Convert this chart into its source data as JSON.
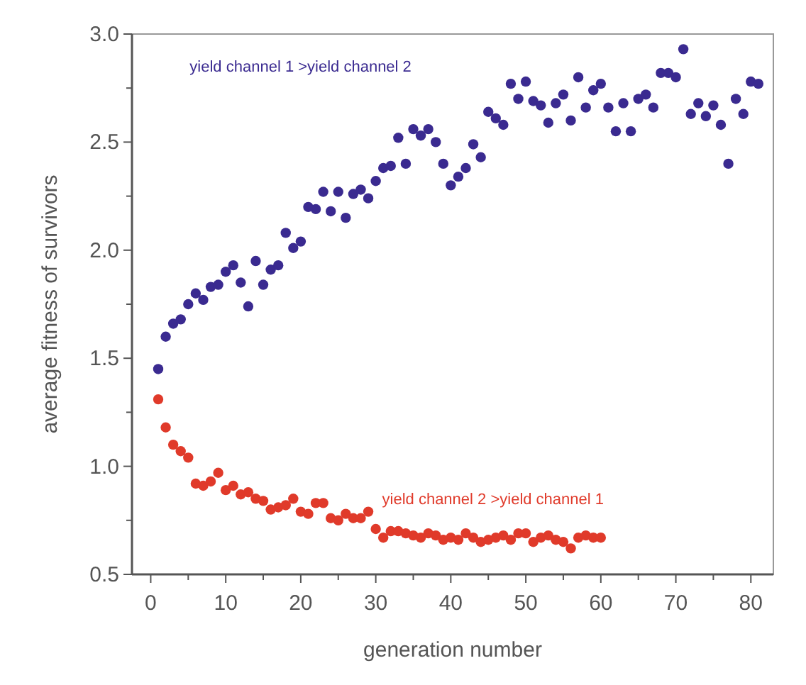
{
  "chart_data": {
    "type": "scatter",
    "xlabel": "generation number",
    "ylabel": "average fitness of survivors",
    "xlim": [
      -2.5,
      83
    ],
    "ylim": [
      0.5,
      3.0
    ],
    "xticks": [
      0,
      {
        "value": 5,
        "label": null
      },
      10,
      {
        "value": 15,
        "label": null
      },
      20,
      {
        "value": 25,
        "label": null
      },
      30,
      {
        "value": 35,
        "label": null
      },
      40,
      {
        "value": 45,
        "label": null
      },
      50,
      {
        "value": 55,
        "label": null
      },
      60,
      {
        "value": 65,
        "label": null
      },
      70,
      {
        "value": 75,
        "label": null
      },
      80
    ],
    "yticks": [
      {
        "value": 0.5,
        "label": "0.5"
      },
      {
        "value": 0.75,
        "label": null
      },
      {
        "value": 1.0,
        "label": "1.0"
      },
      {
        "value": 1.25,
        "label": null
      },
      {
        "value": 1.5,
        "label": "1.5"
      },
      {
        "value": 1.75,
        "label": null
      },
      {
        "value": 2.0,
        "label": "2.0"
      },
      {
        "value": 2.25,
        "label": null
      },
      {
        "value": 2.5,
        "label": "2.5"
      },
      {
        "value": 2.75,
        "label": null
      },
      {
        "value": 3.0,
        "label": "3.0"
      }
    ],
    "grid": false,
    "marker": "circle",
    "series": [
      {
        "name": "yield channel 1 >yield channel 2",
        "color": "#3a2a90",
        "x": [
          1,
          2,
          3,
          4,
          5,
          6,
          7,
          8,
          9,
          10,
          11,
          12,
          13,
          14,
          15,
          16,
          17,
          18,
          19,
          20,
          21,
          22,
          23,
          24,
          25,
          26,
          27,
          28,
          29,
          30,
          31,
          32,
          33,
          34,
          35,
          36,
          37,
          38,
          39,
          40,
          41,
          42,
          43,
          44,
          45,
          46,
          47,
          48,
          49,
          50,
          51,
          52,
          53,
          54,
          55,
          56,
          57,
          58,
          59,
          60,
          61,
          62,
          63,
          64,
          65,
          66,
          67,
          68,
          69,
          70,
          71,
          72,
          73,
          74,
          75,
          76,
          77,
          78,
          79,
          80,
          81
        ],
        "values": [
          1.45,
          1.6,
          1.66,
          1.68,
          1.75,
          1.8,
          1.77,
          1.83,
          1.84,
          1.9,
          1.93,
          1.85,
          1.74,
          1.95,
          1.84,
          1.91,
          1.93,
          2.08,
          2.01,
          2.04,
          2.2,
          2.19,
          2.27,
          2.18,
          2.27,
          2.15,
          2.26,
          2.28,
          2.24,
          2.32,
          2.38,
          2.39,
          2.52,
          2.4,
          2.56,
          2.53,
          2.56,
          2.5,
          2.4,
          2.3,
          2.34,
          2.38,
          2.49,
          2.43,
          2.64,
          2.61,
          2.58,
          2.77,
          2.7,
          2.78,
          2.69,
          2.67,
          2.59,
          2.68,
          2.72,
          2.6,
          2.8,
          2.66,
          2.74,
          2.77,
          2.66,
          2.55,
          2.68,
          2.55,
          2.7,
          2.72,
          2.66,
          2.82,
          2.82,
          2.8,
          2.93,
          2.63,
          2.68,
          2.62,
          2.67,
          2.58,
          2.4,
          2.7,
          2.63,
          2.78,
          2.77
        ]
      },
      {
        "name": "yield channel 2 >yield channel 1",
        "color": "#e03a2a",
        "x": [
          1,
          2,
          3,
          4,
          5,
          6,
          7,
          8,
          9,
          10,
          11,
          12,
          13,
          14,
          15,
          16,
          17,
          18,
          19,
          20,
          21,
          22,
          23,
          24,
          25,
          26,
          27,
          28,
          29,
          30,
          31,
          32,
          33,
          34,
          35,
          36,
          37,
          38,
          39,
          40,
          41,
          42,
          43,
          44,
          45,
          46,
          47,
          48,
          49,
          50,
          51,
          52,
          53,
          54,
          55,
          56,
          57,
          58,
          59,
          60
        ],
        "values": [
          1.31,
          1.18,
          1.1,
          1.07,
          1.04,
          0.92,
          0.91,
          0.93,
          0.97,
          0.89,
          0.91,
          0.87,
          0.88,
          0.85,
          0.84,
          0.8,
          0.81,
          0.82,
          0.85,
          0.79,
          0.78,
          0.83,
          0.83,
          0.76,
          0.75,
          0.78,
          0.76,
          0.76,
          0.79,
          0.71,
          0.67,
          0.7,
          0.7,
          0.69,
          0.68,
          0.67,
          0.69,
          0.68,
          0.66,
          0.67,
          0.66,
          0.69,
          0.67,
          0.65,
          0.66,
          0.67,
          0.68,
          0.66,
          0.69,
          0.69,
          0.65,
          0.67,
          0.68,
          0.66,
          0.65,
          0.62,
          0.67,
          0.68,
          0.67,
          0.67
        ]
      }
    ]
  }
}
